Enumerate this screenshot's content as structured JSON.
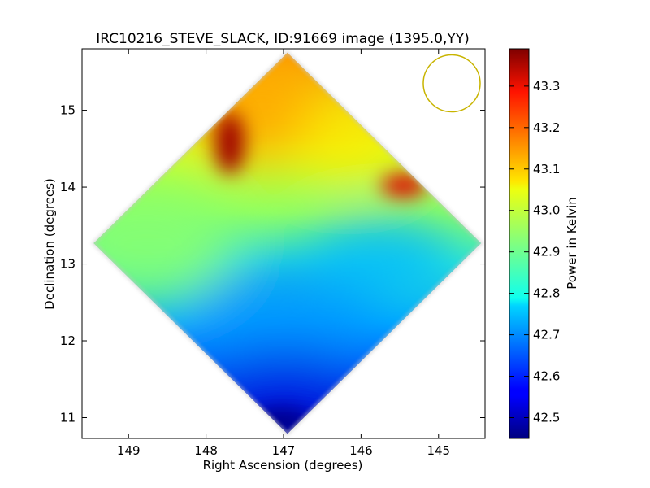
{
  "chart_data": {
    "type": "heatmap",
    "title": "IRC10216_STEVE_SLACK, ID:91669 image (1395.0,YY)",
    "xlabel": "Right Ascension (degrees)",
    "ylabel": "Declination (degrees)",
    "xlim": [
      149.6,
      144.4
    ],
    "ylim": [
      10.73,
      15.8
    ],
    "xticks": [
      149,
      148,
      147,
      146,
      145
    ],
    "yticks": [
      11,
      12,
      13,
      14,
      15
    ],
    "colorbar": {
      "label": "Power in Kelvin",
      "range": [
        42.45,
        43.39
      ],
      "ticks": [
        "42.5",
        "42.6",
        "42.7",
        "42.8",
        "42.9",
        "43.0",
        "43.1",
        "43.2",
        "43.3"
      ],
      "colormap": "jet"
    },
    "footprint": {
      "shape": "diamond",
      "center": [
        146.95,
        13.27
      ],
      "corners": [
        [
          146.95,
          15.75
        ],
        [
          144.45,
          13.27
        ],
        [
          146.95,
          10.79
        ],
        [
          149.45,
          13.27
        ]
      ]
    },
    "features": [
      {
        "kind": "hot-spot",
        "ra": 147.7,
        "dec": 14.5,
        "value": 43.36
      },
      {
        "kind": "hot-spot",
        "ra": 145.5,
        "dec": 13.98,
        "value": 43.29
      },
      {
        "kind": "cold-region",
        "ra": 146.9,
        "dec": 10.95,
        "value": 42.47
      }
    ],
    "beam": {
      "ra": 144.83,
      "dec": 15.35,
      "color": "#c8b400"
    },
    "grid": false
  }
}
